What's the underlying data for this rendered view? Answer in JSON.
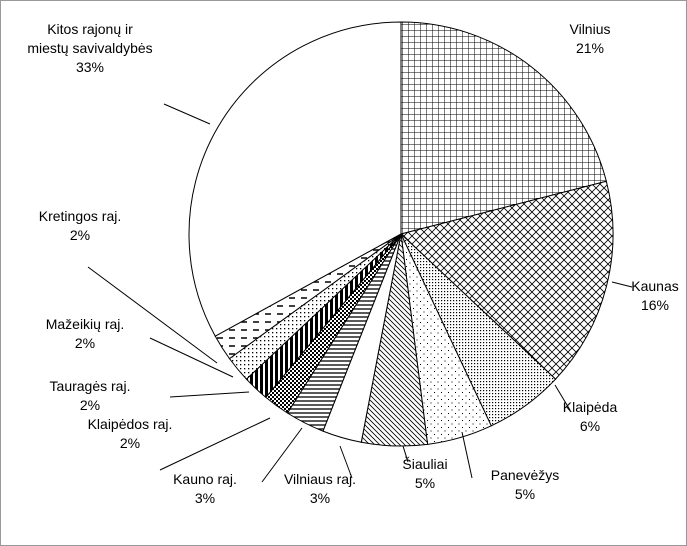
{
  "chart_data": {
    "type": "pie",
    "categories": [
      "Vilnius",
      "Kaunas",
      "Klaipėda",
      "Panevėžys",
      "Šiauliai",
      "Vilniaus raj.",
      "Kauno raj.",
      "Klaipėdos raj.",
      "Tauragės raj.",
      "Mažeikių raj.",
      "Kretingos raj.",
      "Kitos rajonų ir miestų savivaldybės"
    ],
    "values": [
      21,
      16,
      6,
      5,
      5,
      3,
      3,
      2,
      2,
      2,
      2,
      33
    ],
    "value_labels": [
      "21%",
      "16%",
      "6%",
      "5%",
      "5%",
      "3%",
      "3%",
      "2%",
      "2%",
      "2%",
      "2%",
      "33%"
    ]
  }
}
